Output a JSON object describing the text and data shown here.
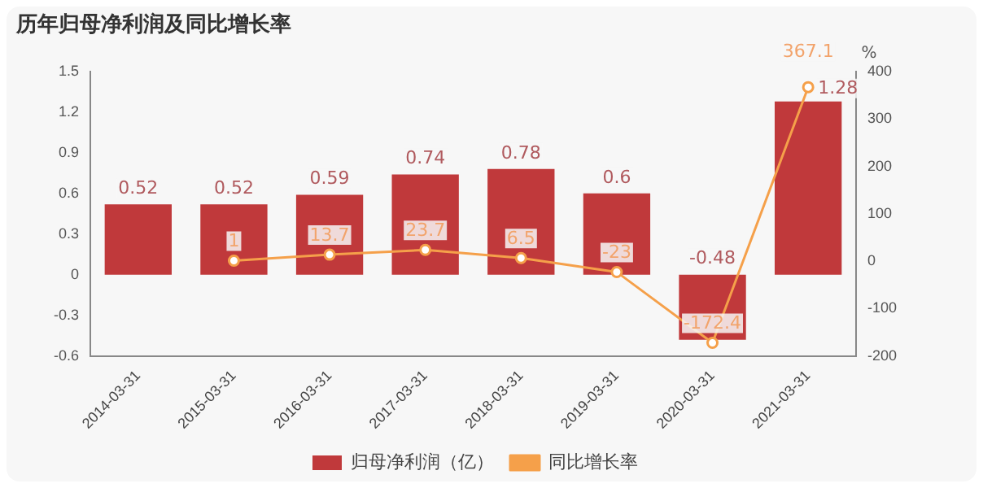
{
  "chart_data": {
    "type": "bar",
    "title": "历年归母净利润及同比增长率",
    "categories": [
      "2014-03-31",
      "2015-03-31",
      "2016-03-31",
      "2017-03-31",
      "2018-03-31",
      "2019-03-31",
      "2020-03-31",
      "2021-03-31"
    ],
    "series": [
      {
        "name": "归母净利润（亿）",
        "color": "#c0393b",
        "values": [
          0.52,
          0.52,
          0.59,
          0.74,
          0.78,
          0.6,
          -0.48,
          1.28
        ]
      },
      {
        "name": "同比增长率",
        "type": "line",
        "axis": "y2",
        "color": "#f5a04a",
        "marker": "circle",
        "values": [
          null,
          1,
          13.7,
          23.7,
          6.5,
          -23,
          -172.4,
          367.1
        ]
      }
    ],
    "ylim": [
      -0.6,
      1.5
    ],
    "yticks": [
      -0.6,
      -0.3,
      0,
      0.3,
      0.6,
      0.9,
      1.2,
      1.5
    ],
    "y2label": "%",
    "y2lim": [
      -200,
      400
    ],
    "y2ticks": [
      -200,
      -100,
      0,
      100,
      200,
      300,
      400
    ],
    "data_labels": true,
    "grid": false,
    "legend": "bottom"
  }
}
